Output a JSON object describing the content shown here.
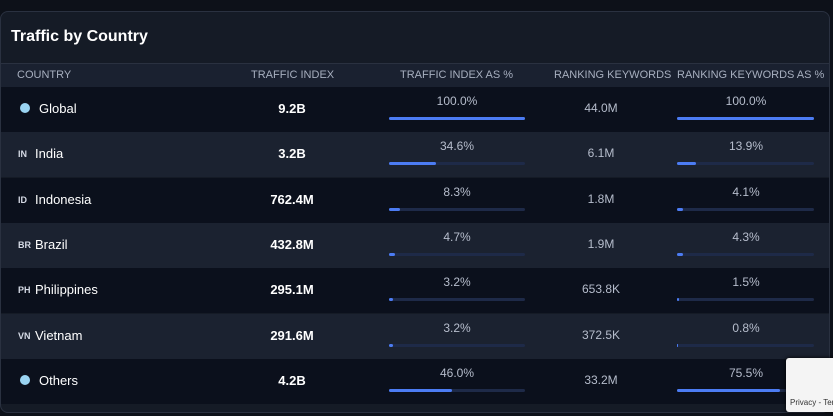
{
  "title": "Traffic by Country",
  "table": {
    "headers": [
      "COUNTRY",
      "TRAFFIC INDEX",
      "TRAFFIC INDEX AS %",
      "RANKING KEYWORDS",
      "RANKING KEYWORDS AS %"
    ],
    "bar_range": [
      0,
      100
    ],
    "rows": [
      {
        "country": "Global",
        "traffic": "9.2B",
        "traffic_pct": 100.0,
        "traffic_pct_label": "100.0%",
        "keywords": "44.0M",
        "keywords_pct": 100.0,
        "keywords_pct_label": "100.0%"
      },
      {
        "code": "IN",
        "country": "India",
        "traffic": "3.2B",
        "traffic_pct": 34.6,
        "traffic_pct_label": "34.6%",
        "keywords": "6.1M",
        "keywords_pct": 13.9,
        "keywords_pct_label": "13.9%"
      },
      {
        "code": "ID",
        "country": "Indonesia",
        "traffic": "762.4M",
        "traffic_pct": 8.3,
        "traffic_pct_label": "8.3%",
        "keywords": "1.8M",
        "keywords_pct": 4.1,
        "keywords_pct_label": "4.1%"
      },
      {
        "code": "BR",
        "country": "Brazil",
        "traffic": "432.8M",
        "traffic_pct": 4.7,
        "traffic_pct_label": "4.7%",
        "keywords": "1.9M",
        "keywords_pct": 4.3,
        "keywords_pct_label": "4.3%"
      },
      {
        "code": "PH",
        "country": "Philippines",
        "traffic": "295.1M",
        "traffic_pct": 3.2,
        "traffic_pct_label": "3.2%",
        "keywords": "653.8K",
        "keywords_pct": 1.5,
        "keywords_pct_label": "1.5%"
      },
      {
        "code": "VN",
        "country": "Vietnam",
        "traffic": "291.6M",
        "traffic_pct": 3.2,
        "traffic_pct_label": "3.2%",
        "keywords": "372.5K",
        "keywords_pct": 0.8,
        "keywords_pct_label": "0.8%"
      },
      {
        "country": "Others",
        "traffic": "4.2B",
        "traffic_pct": 46.0,
        "traffic_pct_label": "46.0%",
        "keywords": "33.2M",
        "keywords_pct": 75.5,
        "keywords_pct_label": "75.5%"
      }
    ]
  },
  "recaptcha": "Privacy - Terms"
}
